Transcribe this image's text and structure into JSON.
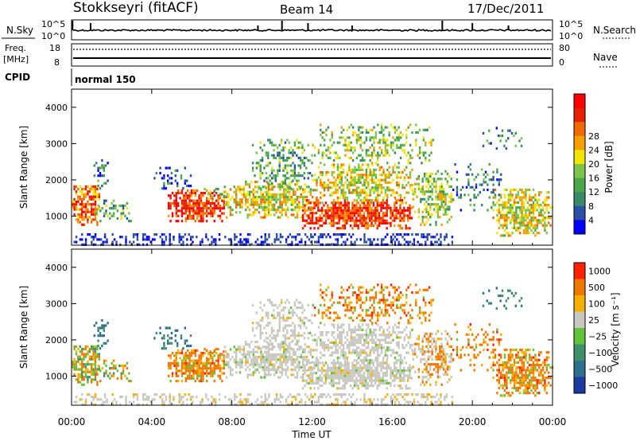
{
  "header": {
    "station": "Stokkseyri (fitACF)",
    "beam": "Beam 14",
    "date": "17/Dec/2011"
  },
  "side_labels": {
    "nsky": "N.Sky",
    "freq_line1": "Freq.",
    "freq_line2": "[MHz]",
    "cpid": "CPID",
    "nsearch": "N.Search",
    "nave": "Nave"
  },
  "cpid_text": "normal 150",
  "chart_data": [
    {
      "type": "line",
      "name": "noise-strip",
      "y_tick_labels": [
        "10^5",
        "10^0"
      ],
      "right_tick_labels": [
        "10^5",
        "10^0"
      ]
    },
    {
      "type": "line",
      "name": "freq-nave-strip",
      "left_tick_labels": [
        "18",
        "8"
      ],
      "right_tick_labels": [
        "80",
        "0"
      ]
    },
    {
      "type": "heatmap",
      "name": "power",
      "ylabel": "Slant Range [km]",
      "y_ticks": [
        "1000",
        "2000",
        "3000",
        "4000"
      ],
      "ylim": [
        200,
        4500
      ],
      "xlim": [
        0,
        24
      ],
      "colorbar_label": "Power [dB]",
      "colorbar_ticks": [
        "4",
        "8",
        "12",
        "16",
        "20",
        "24",
        "28"
      ],
      "colors": [
        "#0000ff",
        "#2b4fa5",
        "#3a8a6a",
        "#4aa84a",
        "#7dc54a",
        "#f2e600",
        "#f5a000",
        "#f06a00",
        "#e62000",
        "#ff0000"
      ]
    },
    {
      "type": "heatmap",
      "name": "velocity",
      "ylabel": "Slant Range [km]",
      "y_ticks": [
        "1000",
        "2000",
        "3000",
        "4000"
      ],
      "ylim": [
        200,
        4500
      ],
      "xlim": [
        0,
        24
      ],
      "colorbar_label": "Velocity [m s⁻¹]",
      "colorbar_ticks": [
        "1000",
        "500",
        "100",
        "25",
        "−25",
        "−100",
        "−500",
        "−1000"
      ],
      "colors": [
        "#1c3aa0",
        "#2e6f8e",
        "#3f8f6a",
        "#62c23a",
        "#c8c8c0",
        "#f5b000",
        "#f07800",
        "#ff2000"
      ],
      "xlabel": "Time UT",
      "x_ticks": [
        "00:00",
        "04:00",
        "08:00",
        "12:00",
        "16:00",
        "20:00",
        "00:00"
      ]
    }
  ]
}
